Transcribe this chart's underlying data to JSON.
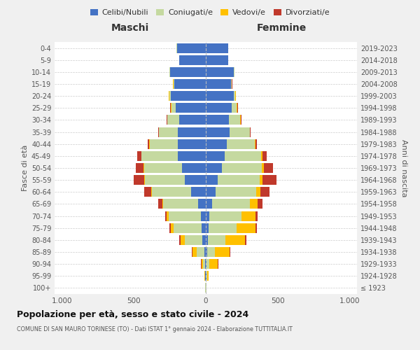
{
  "age_groups": [
    "100+",
    "95-99",
    "90-94",
    "85-89",
    "80-84",
    "75-79",
    "70-74",
    "65-69",
    "60-64",
    "55-59",
    "50-54",
    "45-49",
    "40-44",
    "35-39",
    "30-34",
    "25-29",
    "20-24",
    "15-19",
    "10-14",
    "5-9",
    "0-4"
  ],
  "birth_years": [
    "≤ 1923",
    "1924-1928",
    "1929-1933",
    "1934-1938",
    "1939-1943",
    "1944-1948",
    "1949-1953",
    "1954-1958",
    "1959-1963",
    "1964-1968",
    "1969-1973",
    "1974-1978",
    "1979-1983",
    "1984-1988",
    "1989-1993",
    "1994-1998",
    "1999-2003",
    "2004-2008",
    "2009-2013",
    "2014-2018",
    "2019-2023"
  ],
  "maschi": {
    "celibi": [
      2,
      3,
      5,
      10,
      25,
      30,
      35,
      55,
      100,
      145,
      165,
      195,
      195,
      195,
      185,
      210,
      245,
      220,
      250,
      185,
      200
    ],
    "coniugati": [
      2,
      4,
      15,
      55,
      120,
      195,
      225,
      240,
      275,
      280,
      265,
      250,
      195,
      130,
      80,
      30,
      10,
      5,
      3,
      2,
      2
    ],
    "vedovi": [
      0,
      2,
      10,
      25,
      30,
      20,
      10,
      5,
      5,
      5,
      5,
      2,
      2,
      2,
      2,
      2,
      2,
      2,
      0,
      0,
      0
    ],
    "divorziati": [
      0,
      0,
      2,
      5,
      10,
      10,
      10,
      30,
      50,
      70,
      50,
      30,
      10,
      5,
      5,
      5,
      2,
      2,
      0,
      0,
      0
    ]
  },
  "femmine": {
    "nubili": [
      2,
      3,
      5,
      10,
      15,
      20,
      25,
      45,
      70,
      85,
      110,
      130,
      145,
      165,
      160,
      180,
      195,
      175,
      195,
      155,
      155
    ],
    "coniugate": [
      2,
      5,
      20,
      55,
      120,
      195,
      225,
      260,
      280,
      290,
      280,
      255,
      195,
      140,
      80,
      35,
      10,
      5,
      3,
      2,
      2
    ],
    "vedove": [
      2,
      10,
      60,
      100,
      135,
      130,
      95,
      55,
      30,
      20,
      15,
      10,
      5,
      2,
      2,
      2,
      2,
      2,
      0,
      0,
      0
    ],
    "divorziate": [
      0,
      0,
      2,
      5,
      10,
      10,
      15,
      35,
      60,
      95,
      60,
      30,
      10,
      5,
      5,
      5,
      2,
      2,
      0,
      0,
      0
    ]
  },
  "colors": {
    "celibi": "#4472c4",
    "coniugati": "#c5d9a0",
    "vedovi": "#ffc000",
    "divorziati": "#c0392b"
  },
  "title_main": "Popolazione per età, sesso e stato civile - 2024",
  "title_sub": "COMUNE DI SAN MAURO TORINESE (TO) - Dati ISTAT 1° gennaio 2024 - Elaborazione TUTTITALIA.IT",
  "ylabel_left": "Fasce di età",
  "ylabel_right": "Anni di nascita",
  "xlabel_left": "Maschi",
  "xlabel_right": "Femmine",
  "xlim": 1050,
  "background_color": "#f0f0f0",
  "plot_bg": "#ffffff",
  "legend_labels": [
    "Celibi/Nubili",
    "Coniugati/e",
    "Vedovi/e",
    "Divorziati/e"
  ]
}
